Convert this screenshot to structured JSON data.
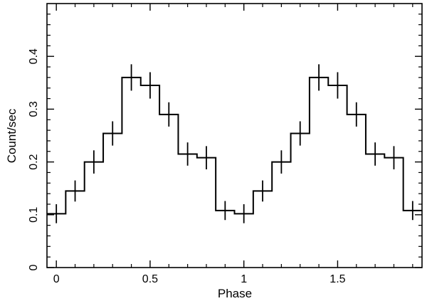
{
  "chart_data": {
    "type": "line",
    "title": "",
    "xlabel": "Phase",
    "ylabel": "Count/sec",
    "xlim": [
      -0.05,
      1.95
    ],
    "ylim": [
      0,
      0.5
    ],
    "x_ticks": [
      0,
      0.5,
      1,
      1.5
    ],
    "x_tick_labels": [
      "0",
      "0.5",
      "1",
      "1.5"
    ],
    "y_ticks": [
      0,
      0.1,
      0.2,
      0.3,
      0.4
    ],
    "y_tick_labels": [
      "0",
      "0.1",
      "0.2",
      "0.3",
      "0.4"
    ],
    "grid": false,
    "bin_width": 0.1,
    "series": [
      {
        "style": "step-histogram-with-error-bars",
        "x": [
          0.0,
          0.1,
          0.2,
          0.3,
          0.4,
          0.5,
          0.6,
          0.7,
          0.8,
          0.9,
          1.0,
          1.1,
          1.2,
          1.3,
          1.4,
          1.5,
          1.6,
          1.7,
          1.8,
          1.9
        ],
        "y": [
          0.102,
          0.145,
          0.2,
          0.254,
          0.36,
          0.345,
          0.29,
          0.215,
          0.208,
          0.108,
          0.102,
          0.145,
          0.2,
          0.254,
          0.36,
          0.345,
          0.29,
          0.215,
          0.208,
          0.108
        ],
        "yerr": [
          0.018,
          0.02,
          0.022,
          0.023,
          0.025,
          0.025,
          0.023,
          0.022,
          0.022,
          0.018,
          0.018,
          0.02,
          0.022,
          0.023,
          0.025,
          0.025,
          0.023,
          0.022,
          0.022,
          0.018
        ]
      }
    ]
  }
}
